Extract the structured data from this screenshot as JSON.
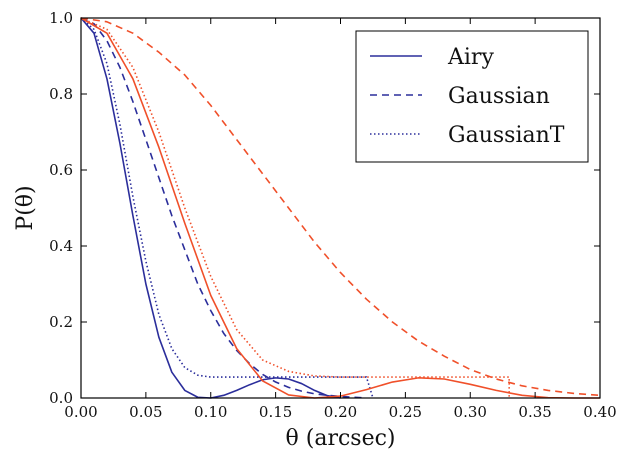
{
  "chart_data": {
    "type": "line",
    "xlabel": "θ (arcsec)",
    "ylabel": "P(θ)",
    "xlim": [
      0.0,
      0.4
    ],
    "ylim": [
      0.0,
      1.0
    ],
    "xticks": [
      "0.00",
      "0.05",
      "0.10",
      "0.15",
      "0.20",
      "0.25",
      "0.30",
      "0.35",
      "0.40"
    ],
    "yticks": [
      "0.0",
      "0.2",
      "0.4",
      "0.6",
      "0.8",
      "1.0"
    ],
    "grid": false,
    "legend_position": "top-right",
    "legend": [
      {
        "label": "Airy",
        "style": "solid"
      },
      {
        "label": "Gaussian",
        "style": "dashed"
      },
      {
        "label": "GaussianT",
        "style": "dotted"
      }
    ],
    "colors": {
      "blue": "#2b2e9b",
      "orange": "#f0502a"
    },
    "series": [
      {
        "style": "solid",
        "color": "#2b2e9b",
        "x": [
          0.0,
          0.01,
          0.02,
          0.03,
          0.04,
          0.05,
          0.06,
          0.07,
          0.08,
          0.09,
          0.1,
          0.11,
          0.12,
          0.13,
          0.14,
          0.15,
          0.16,
          0.17,
          0.18,
          0.19,
          0.2
        ],
        "y": [
          1.0,
          0.96,
          0.84,
          0.67,
          0.48,
          0.3,
          0.16,
          0.068,
          0.02,
          0.002,
          0.0,
          0.007,
          0.02,
          0.035,
          0.048,
          0.053,
          0.05,
          0.038,
          0.02,
          0.006,
          0.0
        ]
      },
      {
        "style": "dashed",
        "color": "#2b2e9b",
        "x": [
          0.0,
          0.01,
          0.02,
          0.03,
          0.04,
          0.05,
          0.06,
          0.07,
          0.08,
          0.09,
          0.1,
          0.11,
          0.12,
          0.13,
          0.14,
          0.15,
          0.16,
          0.17,
          0.18,
          0.19,
          0.2,
          0.21,
          0.22
        ],
        "y": [
          1.0,
          0.985,
          0.94,
          0.87,
          0.78,
          0.68,
          0.58,
          0.48,
          0.39,
          0.3,
          0.23,
          0.17,
          0.125,
          0.09,
          0.062,
          0.042,
          0.028,
          0.018,
          0.011,
          0.007,
          0.004,
          0.002,
          0.0
        ]
      },
      {
        "style": "dotted",
        "color": "#2b2e9b",
        "x": [
          0.0,
          0.01,
          0.02,
          0.03,
          0.04,
          0.05,
          0.06,
          0.07,
          0.08,
          0.09,
          0.1,
          0.12,
          0.14,
          0.16,
          0.18,
          0.2,
          0.22,
          0.225
        ],
        "y": [
          1.0,
          0.97,
          0.88,
          0.72,
          0.53,
          0.36,
          0.22,
          0.13,
          0.08,
          0.06,
          0.055,
          0.055,
          0.055,
          0.055,
          0.055,
          0.055,
          0.055,
          0.0
        ]
      },
      {
        "style": "solid",
        "color": "#f0502a",
        "x": [
          0.0,
          0.02,
          0.04,
          0.06,
          0.08,
          0.1,
          0.12,
          0.14,
          0.16,
          0.18,
          0.2,
          0.22,
          0.24,
          0.26,
          0.28,
          0.3,
          0.32,
          0.34,
          0.36,
          0.38,
          0.4
        ],
        "y": [
          1.0,
          0.96,
          0.84,
          0.66,
          0.46,
          0.27,
          0.13,
          0.045,
          0.008,
          0.0,
          0.005,
          0.022,
          0.042,
          0.053,
          0.05,
          0.036,
          0.02,
          0.007,
          0.001,
          0.0,
          0.0
        ]
      },
      {
        "style": "dashed",
        "color": "#f0502a",
        "x": [
          0.0,
          0.02,
          0.04,
          0.06,
          0.08,
          0.1,
          0.12,
          0.14,
          0.16,
          0.18,
          0.2,
          0.22,
          0.24,
          0.26,
          0.28,
          0.3,
          0.32,
          0.34,
          0.36,
          0.38,
          0.4
        ],
        "y": [
          1.0,
          0.99,
          0.96,
          0.91,
          0.85,
          0.77,
          0.68,
          0.59,
          0.5,
          0.41,
          0.33,
          0.26,
          0.2,
          0.15,
          0.11,
          0.075,
          0.05,
          0.032,
          0.02,
          0.012,
          0.007
        ]
      },
      {
        "style": "dotted",
        "color": "#f0502a",
        "x": [
          0.0,
          0.02,
          0.04,
          0.06,
          0.08,
          0.1,
          0.12,
          0.14,
          0.16,
          0.18,
          0.2,
          0.22,
          0.24,
          0.26,
          0.28,
          0.3,
          0.32,
          0.33,
          0.33
        ],
        "y": [
          1.0,
          0.97,
          0.87,
          0.7,
          0.5,
          0.32,
          0.18,
          0.1,
          0.07,
          0.058,
          0.055,
          0.055,
          0.055,
          0.055,
          0.055,
          0.055,
          0.055,
          0.055,
          0.0
        ]
      }
    ]
  }
}
